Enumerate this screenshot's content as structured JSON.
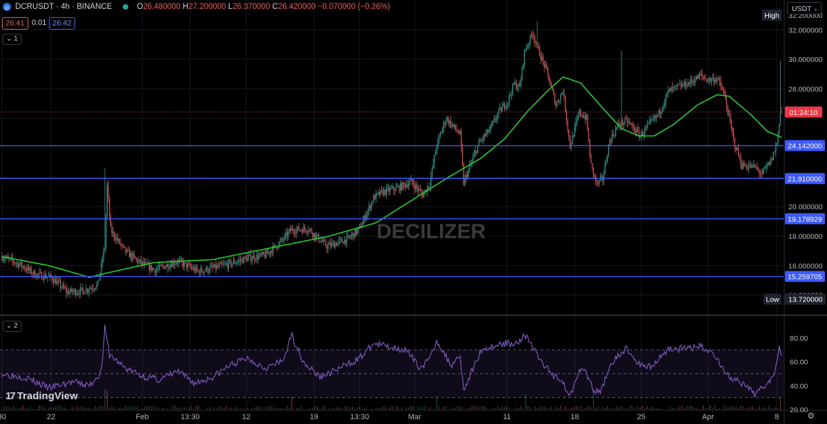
{
  "header": {
    "symbol": "DCRUSDT · 4h · BINANCE",
    "ohlc": [
      {
        "k": "O",
        "v": "26.480000"
      },
      {
        "k": "H",
        "v": "27.200000"
      },
      {
        "k": "L",
        "v": "26.370000"
      },
      {
        "k": "C",
        "v": "26.420000"
      },
      {
        "k": "",
        "v": "−0.070000 (−0.26%)"
      }
    ],
    "bid": "26.41",
    "spread": "0.01",
    "ask": "26.42",
    "indicator_toggle_1": "1",
    "indicator_toggle_2": "2",
    "currency": "USDT"
  },
  "watermark": "DECILIZER",
  "brand": "TradingView",
  "colors": {
    "bull": "#26a69a",
    "bear": "#ef5350",
    "ma": "#22d12c",
    "levels": "#3d5afe",
    "rsi": "#7e57c2",
    "current": "#f23645",
    "high_low_bg": "#1e222d"
  },
  "chart_data": {
    "type": "candlestick",
    "timeframe": "4h",
    "y_axis": {
      "ylim": [
        13.0,
        33.0
      ],
      "ticks": [
        14,
        16,
        18,
        20,
        22,
        24,
        26,
        28,
        30,
        32
      ],
      "tick_format": "6dp"
    },
    "x_ticks": [
      {
        "label": "30",
        "i": 0
      },
      {
        "label": "22",
        "i": 42
      },
      {
        "label": "Feb",
        "i": 120
      },
      {
        "label": "13:30",
        "i": 161
      },
      {
        "label": "12",
        "i": 209
      },
      {
        "label": "19",
        "i": 267
      },
      {
        "label": "13:30",
        "i": 306
      },
      {
        "label": "Mar",
        "i": 353
      },
      {
        "label": "11",
        "i": 432
      },
      {
        "label": "18",
        "i": 490
      },
      {
        "label": "25",
        "i": 547
      },
      {
        "label": "Apr",
        "i": 604
      },
      {
        "label": "8",
        "i": 663
      }
    ],
    "n_bars": 668,
    "anchors": [
      [
        0,
        16.6
      ],
      [
        15,
        16.1
      ],
      [
        28,
        15.4
      ],
      [
        42,
        15.2
      ],
      [
        56,
        14.2
      ],
      [
        70,
        14.3
      ],
      [
        82,
        14.7
      ],
      [
        88,
        17.3
      ],
      [
        90,
        21.4
      ],
      [
        93,
        18.4
      ],
      [
        105,
        17.0
      ],
      [
        118,
        16.2
      ],
      [
        131,
        15.7
      ],
      [
        150,
        16.3
      ],
      [
        168,
        15.6
      ],
      [
        190,
        16.0
      ],
      [
        210,
        16.5
      ],
      [
        225,
        16.7
      ],
      [
        240,
        17.7
      ],
      [
        247,
        18.4
      ],
      [
        262,
        18.5
      ],
      [
        278,
        17.3
      ],
      [
        296,
        17.8
      ],
      [
        306,
        18.5
      ],
      [
        318,
        20.6
      ],
      [
        326,
        21.0
      ],
      [
        340,
        21.3
      ],
      [
        350,
        21.7
      ],
      [
        360,
        20.8
      ],
      [
        366,
        21.6
      ],
      [
        372,
        24.2
      ],
      [
        380,
        26.0
      ],
      [
        392,
        24.9
      ],
      [
        395,
        21.6
      ],
      [
        408,
        24.3
      ],
      [
        418,
        25.3
      ],
      [
        425,
        26.4
      ],
      [
        433,
        27.2
      ],
      [
        438,
        28.3
      ],
      [
        443,
        28.1
      ],
      [
        447,
        30.5
      ],
      [
        454,
        31.8
      ],
      [
        459,
        30.6
      ],
      [
        466,
        29.2
      ],
      [
        474,
        26.9
      ],
      [
        480,
        27.9
      ],
      [
        486,
        24.1
      ],
      [
        494,
        26.4
      ],
      [
        500,
        26.0
      ],
      [
        504,
        22.8
      ],
      [
        509,
        21.5
      ],
      [
        514,
        21.9
      ],
      [
        520,
        24.5
      ],
      [
        528,
        25.6
      ],
      [
        535,
        25.8
      ],
      [
        546,
        24.8
      ],
      [
        553,
        25.5
      ],
      [
        562,
        26.3
      ],
      [
        570,
        27.8
      ],
      [
        578,
        28.1
      ],
      [
        588,
        28.4
      ],
      [
        598,
        28.9
      ],
      [
        604,
        28.6
      ],
      [
        612,
        28.7
      ],
      [
        618,
        27.6
      ],
      [
        626,
        24.5
      ],
      [
        633,
        22.8
      ],
      [
        644,
        22.7
      ],
      [
        650,
        22.2
      ],
      [
        658,
        23.1
      ],
      [
        663,
        24.3
      ],
      [
        666,
        26.5
      ],
      [
        667,
        26.42
      ]
    ],
    "ma": [
      [
        0,
        16.6
      ],
      [
        40,
        16.0
      ],
      [
        75,
        15.2
      ],
      [
        90,
        15.5
      ],
      [
        130,
        16.2
      ],
      [
        180,
        16.4
      ],
      [
        230,
        17.2
      ],
      [
        280,
        18.0
      ],
      [
        320,
        18.9
      ],
      [
        350,
        20.4
      ],
      [
        380,
        21.9
      ],
      [
        410,
        23.3
      ],
      [
        430,
        24.6
      ],
      [
        450,
        26.5
      ],
      [
        466,
        27.8
      ],
      [
        480,
        28.8
      ],
      [
        495,
        28.4
      ],
      [
        515,
        26.6
      ],
      [
        530,
        25.3
      ],
      [
        545,
        24.8
      ],
      [
        558,
        24.8
      ],
      [
        575,
        25.6
      ],
      [
        595,
        26.9
      ],
      [
        612,
        27.6
      ],
      [
        622,
        27.5
      ],
      [
        640,
        26.3
      ],
      [
        655,
        25.1
      ],
      [
        667,
        24.7
      ]
    ],
    "levels": [
      {
        "value": 24.142,
        "label": "24.142000"
      },
      {
        "value": 21.91,
        "label": "21.910000"
      },
      {
        "value": 19.178929,
        "label": "19.178929"
      },
      {
        "value": 15.259705,
        "label": "15.259705"
      }
    ],
    "high": {
      "label": "High",
      "value": "32.200000"
    },
    "low": {
      "label": "Low",
      "value": "13.720000"
    },
    "current_price": {
      "value": 26.42,
      "countdown": "01:24:10"
    },
    "rsi": {
      "ylim": [
        20,
        92
      ],
      "ticks": [
        20,
        40,
        60,
        80
      ],
      "band": [
        30,
        70
      ],
      "mid": 50,
      "anchors": [
        [
          0,
          50
        ],
        [
          20,
          47
        ],
        [
          40,
          38
        ],
        [
          60,
          43
        ],
        [
          75,
          40
        ],
        [
          85,
          52
        ],
        [
          88,
          88
        ],
        [
          92,
          66
        ],
        [
          105,
          55
        ],
        [
          120,
          48
        ],
        [
          135,
          45
        ],
        [
          150,
          52
        ],
        [
          165,
          42
        ],
        [
          180,
          47
        ],
        [
          195,
          57
        ],
        [
          210,
          63
        ],
        [
          225,
          55
        ],
        [
          240,
          60
        ],
        [
          248,
          82
        ],
        [
          258,
          60
        ],
        [
          272,
          47
        ],
        [
          290,
          55
        ],
        [
          306,
          63
        ],
        [
          318,
          75
        ],
        [
          330,
          73
        ],
        [
          345,
          70
        ],
        [
          358,
          55
        ],
        [
          366,
          62
        ],
        [
          372,
          78
        ],
        [
          384,
          57
        ],
        [
          392,
          66
        ],
        [
          395,
          36
        ],
        [
          410,
          70
        ],
        [
          428,
          75
        ],
        [
          440,
          76
        ],
        [
          448,
          82
        ],
        [
          460,
          62
        ],
        [
          470,
          50
        ],
        [
          478,
          46
        ],
        [
          486,
          31
        ],
        [
          494,
          55
        ],
        [
          500,
          50
        ],
        [
          506,
          36
        ],
        [
          512,
          34
        ],
        [
          520,
          57
        ],
        [
          534,
          71
        ],
        [
          545,
          58
        ],
        [
          556,
          56
        ],
        [
          570,
          71
        ],
        [
          585,
          71
        ],
        [
          598,
          73
        ],
        [
          610,
          66
        ],
        [
          620,
          49
        ],
        [
          632,
          42
        ],
        [
          644,
          33
        ],
        [
          652,
          40
        ],
        [
          660,
          48
        ],
        [
          665,
          73
        ],
        [
          667,
          68
        ]
      ]
    },
    "volume": "low bars along bottom of RSI pane"
  }
}
